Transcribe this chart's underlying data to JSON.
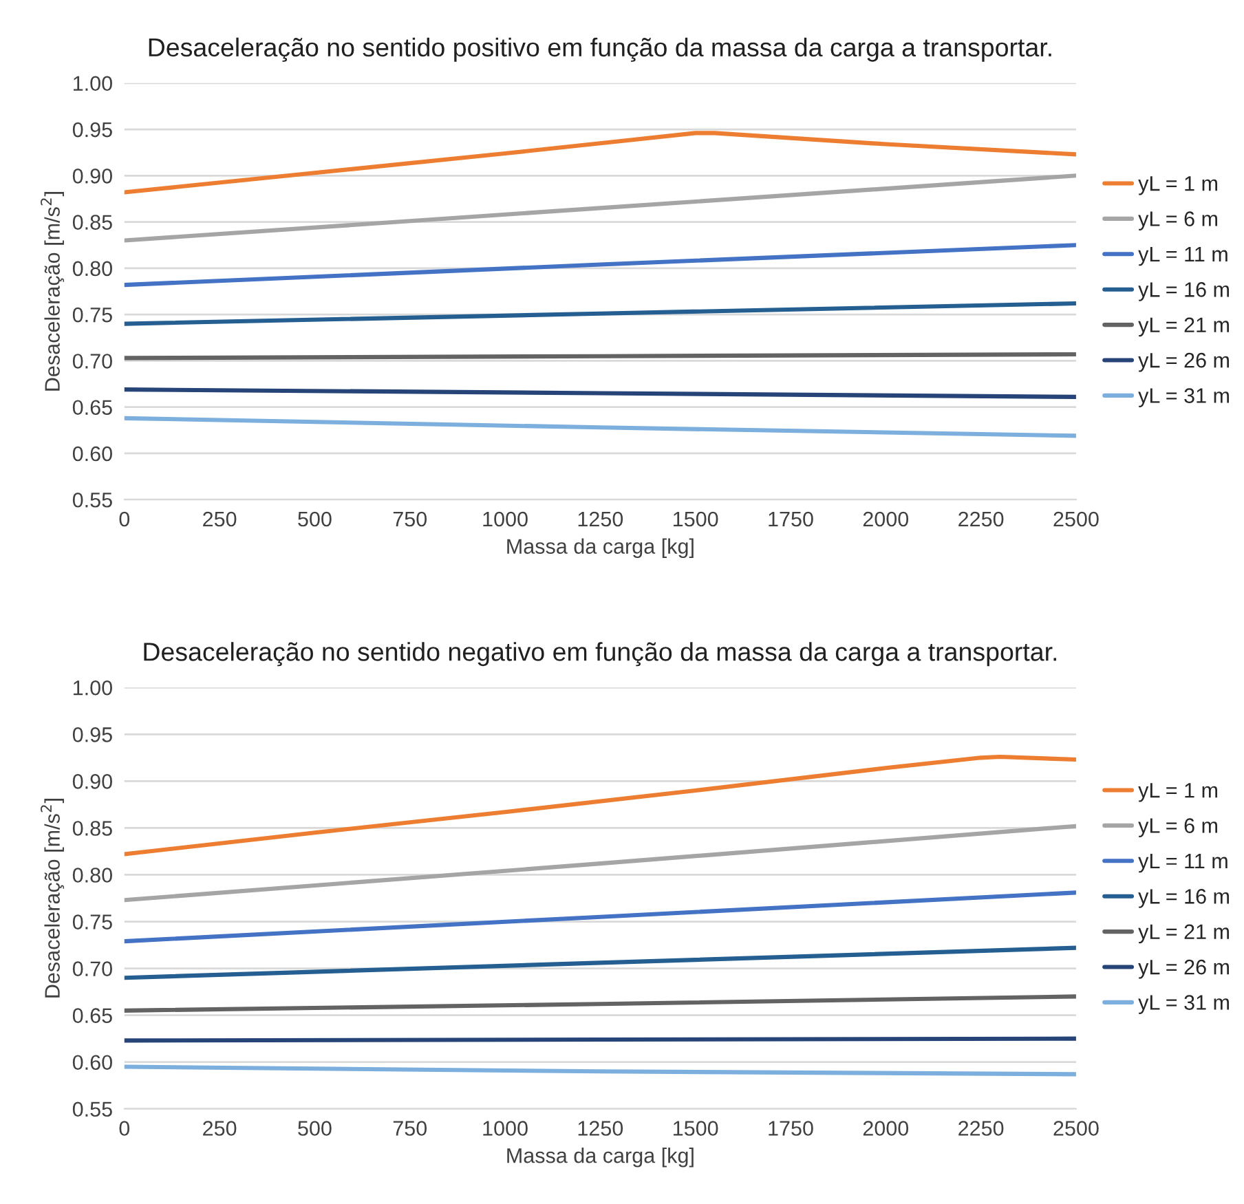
{
  "chart_data": [
    {
      "type": "line",
      "title": "Desaceleração no sentido positivo em função da massa da carga a transportar.",
      "xlabel": "Massa da carga [kg]",
      "ylabel": "Desaceleração [m/s$^{2}$]",
      "xlim": [
        0,
        2500
      ],
      "xticks": [
        0,
        250,
        500,
        750,
        1000,
        1250,
        1500,
        1750,
        2000,
        2250,
        2500
      ],
      "ylim": [
        0.55,
        1.0
      ],
      "yticks": [
        {
          "value": 0.55,
          "label": "0.55"
        },
        {
          "value": 0.6,
          "label": "0.60"
        },
        {
          "value": 0.65,
          "label": "0.65"
        },
        {
          "value": 0.7,
          "label": "0.70"
        },
        {
          "value": 0.75,
          "label": "0.75"
        },
        {
          "value": 0.8,
          "label": "0.80"
        },
        {
          "value": 0.85,
          "label": "0.85"
        },
        {
          "value": 0.9,
          "label": "0.90"
        },
        {
          "value": 0.95,
          "label": "0.95"
        },
        {
          "value": 1.0,
          "label": "1.00"
        }
      ],
      "grid": "y",
      "legend": "right",
      "marker": "none",
      "line_style": "solid",
      "series": [
        {
          "name": "yL = 1 m",
          "color": "#ed7d31",
          "x": [
            0,
            500,
            1000,
            1250,
            1500,
            1550,
            2000,
            2500
          ],
          "values": [
            0.882,
            0.903,
            0.924,
            0.935,
            0.946,
            0.946,
            0.934,
            0.923
          ]
        },
        {
          "name": "yL = 6 m",
          "color": "#a5a5a5",
          "x": [
            0,
            1250,
            2500
          ],
          "values": [
            0.83,
            0.865,
            0.9
          ]
        },
        {
          "name": "yL = 11 m",
          "color": "#4472c4",
          "x": [
            0,
            1250,
            2500
          ],
          "values": [
            0.782,
            0.804,
            0.825
          ]
        },
        {
          "name": "yL = 16 m",
          "color": "#255e91",
          "x": [
            0,
            1250,
            2500
          ],
          "values": [
            0.74,
            0.751,
            0.762
          ]
        },
        {
          "name": "yL = 21 m",
          "color": "#636363",
          "x": [
            0,
            1250,
            2500
          ],
          "values": [
            0.703,
            0.705,
            0.707
          ]
        },
        {
          "name": "yL = 26 m",
          "color": "#264478",
          "x": [
            0,
            1250,
            2500
          ],
          "values": [
            0.669,
            0.665,
            0.661
          ]
        },
        {
          "name": "yL = 31 m",
          "color": "#7cafdd",
          "x": [
            0,
            1250,
            2500
          ],
          "values": [
            0.638,
            0.628,
            0.619
          ]
        }
      ]
    },
    {
      "type": "line",
      "title": "Desaceleração no sentido negativo em função da massa da carga a transportar.",
      "xlabel": "Massa da carga [kg]",
      "ylabel": "Desaceleração [m/s$^{2}$]",
      "xlim": [
        0,
        2500
      ],
      "xticks": [
        0,
        250,
        500,
        750,
        1000,
        1250,
        1500,
        1750,
        2000,
        2250,
        2500
      ],
      "ylim": [
        0.55,
        1.0
      ],
      "yticks": [
        {
          "value": 0.55,
          "label": "0.55"
        },
        {
          "value": 0.6,
          "label": "0.60"
        },
        {
          "value": 0.65,
          "label": "0.65"
        },
        {
          "value": 0.7,
          "label": "0.70"
        },
        {
          "value": 0.75,
          "label": "0.75"
        },
        {
          "value": 0.8,
          "label": "0.80"
        },
        {
          "value": 0.85,
          "label": "0.85"
        },
        {
          "value": 0.9,
          "label": "0.90"
        },
        {
          "value": 0.95,
          "label": "0.95"
        },
        {
          "value": 1.0,
          "label": "1.00"
        }
      ],
      "grid": "y",
      "legend": "right",
      "marker": "none",
      "line_style": "solid",
      "series": [
        {
          "name": "yL = 1 m",
          "color": "#ed7d31",
          "x": [
            0,
            500,
            1000,
            1500,
            2000,
            2250,
            2300,
            2500
          ],
          "values": [
            0.822,
            0.845,
            0.867,
            0.89,
            0.914,
            0.925,
            0.926,
            0.923
          ]
        },
        {
          "name": "yL = 6 m",
          "color": "#a5a5a5",
          "x": [
            0,
            1250,
            2500
          ],
          "values": [
            0.773,
            0.812,
            0.852
          ]
        },
        {
          "name": "yL = 11 m",
          "color": "#4472c4",
          "x": [
            0,
            1250,
            2500
          ],
          "values": [
            0.729,
            0.755,
            0.781
          ]
        },
        {
          "name": "yL = 16 m",
          "color": "#255e91",
          "x": [
            0,
            1250,
            2500
          ],
          "values": [
            0.69,
            0.706,
            0.722
          ]
        },
        {
          "name": "yL = 21 m",
          "color": "#636363",
          "x": [
            0,
            1250,
            2500
          ],
          "values": [
            0.655,
            0.662,
            0.67
          ]
        },
        {
          "name": "yL = 26 m",
          "color": "#264478",
          "x": [
            0,
            1250,
            2500
          ],
          "values": [
            0.623,
            0.624,
            0.625
          ]
        },
        {
          "name": "yL = 31 m",
          "color": "#7cafdd",
          "x": [
            0,
            1250,
            2500
          ],
          "values": [
            0.595,
            0.59,
            0.587
          ]
        }
      ]
    }
  ]
}
